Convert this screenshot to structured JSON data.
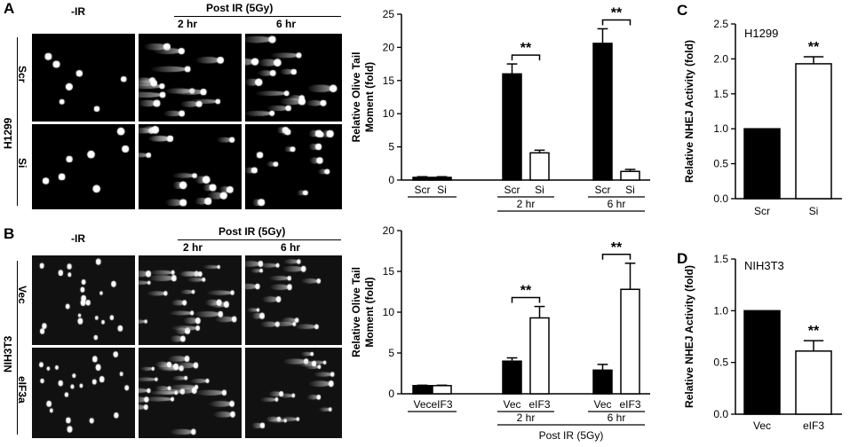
{
  "panel_labels": {
    "A": "A",
    "B": "B",
    "C": "C",
    "D": "D"
  },
  "panel_a": {
    "col_neg_ir": "-IR",
    "post_ir": "Post IR (5Gy)",
    "col_2hr": "2 hr",
    "col_6hr": "6 hr",
    "cell_line": "H1299",
    "row_1": "Scr",
    "row_2": "Si"
  },
  "panel_b": {
    "col_neg_ir": "-IR",
    "post_ir": "Post IR (5Gy)",
    "col_2hr": "2 hr",
    "col_6hr": "6 hr",
    "cell_line": "NIH3T3",
    "row_1": "Vec",
    "row_2": "eIF3a"
  },
  "chart_data": [
    {
      "id": "chart_a",
      "type": "bar",
      "ylabel": "Relative Olive Tail Moment (fold)",
      "ylim": [
        0,
        25
      ],
      "yticks": [
        0,
        5,
        10,
        15,
        20,
        25
      ],
      "categories": [
        "Scr",
        "Si",
        "Scr",
        "Si",
        "Scr",
        "Si"
      ],
      "groups": [
        {
          "label": "",
          "indices": [
            0,
            1
          ]
        },
        {
          "label": "2 hr",
          "indices": [
            2,
            3
          ]
        },
        {
          "label": "6 hr",
          "indices": [
            4,
            5
          ]
        }
      ],
      "values": [
        0.4,
        0.4,
        16.0,
        4.1,
        20.6,
        1.3
      ],
      "errors": [
        0.1,
        0.1,
        1.5,
        0.4,
        2.2,
        0.3
      ],
      "fill": [
        "black",
        "black",
        "black",
        "white",
        "black",
        "white"
      ],
      "significance": [
        {
          "pair": [
            2,
            3
          ],
          "label": "**"
        },
        {
          "pair": [
            4,
            5
          ],
          "label": "**"
        }
      ]
    },
    {
      "id": "chart_b",
      "type": "bar",
      "ylabel": "Relative Olive Tail Moment (fold)",
      "ylim": [
        0,
        20
      ],
      "yticks": [
        0,
        5,
        10,
        15,
        20
      ],
      "categories": [
        "Vec",
        "eIF3",
        "Vec",
        "eIF3",
        "Vec",
        "eIF3"
      ],
      "groups": [
        {
          "label": "",
          "indices": [
            0,
            1
          ]
        },
        {
          "label": "2 hr",
          "indices": [
            2,
            3
          ]
        },
        {
          "label": "6 hr",
          "indices": [
            4,
            5
          ]
        }
      ],
      "bottom_label": "Post IR (5Gy)",
      "values": [
        1.0,
        1.0,
        4.0,
        9.3,
        2.9,
        12.8
      ],
      "errors": [
        0.05,
        0.05,
        0.4,
        1.4,
        0.7,
        3.2
      ],
      "fill": [
        "black",
        "white",
        "black",
        "white",
        "black",
        "white"
      ],
      "significance": [
        {
          "pair": [
            2,
            3
          ],
          "label": "**"
        },
        {
          "pair": [
            4,
            5
          ],
          "label": "**"
        }
      ]
    },
    {
      "id": "chart_c",
      "type": "bar",
      "title": "H1299",
      "ylabel": "Relative NHEJ Activity (fold)",
      "ylim": [
        0,
        2.5
      ],
      "yticks": [
        0,
        0.5,
        1.0,
        1.5,
        2.0,
        2.5
      ],
      "categories": [
        "Scr",
        "Si"
      ],
      "values": [
        1.0,
        1.93
      ],
      "errors": [
        0,
        0.1
      ],
      "fill": [
        "black",
        "white"
      ],
      "significance": [
        {
          "index": 1,
          "label": "**"
        }
      ]
    },
    {
      "id": "chart_d",
      "type": "bar",
      "title": "NIH3T3",
      "ylabel": "Relative NHEJ Activity (fold)",
      "ylim": [
        0,
        1.5
      ],
      "yticks": [
        0,
        0.5,
        1.0,
        1.5
      ],
      "categories": [
        "Vec",
        "eIF3"
      ],
      "values": [
        1.0,
        0.61
      ],
      "errors": [
        0,
        0.1
      ],
      "fill": [
        "black",
        "white"
      ],
      "significance": [
        {
          "index": 1,
          "label": "**"
        }
      ]
    }
  ]
}
